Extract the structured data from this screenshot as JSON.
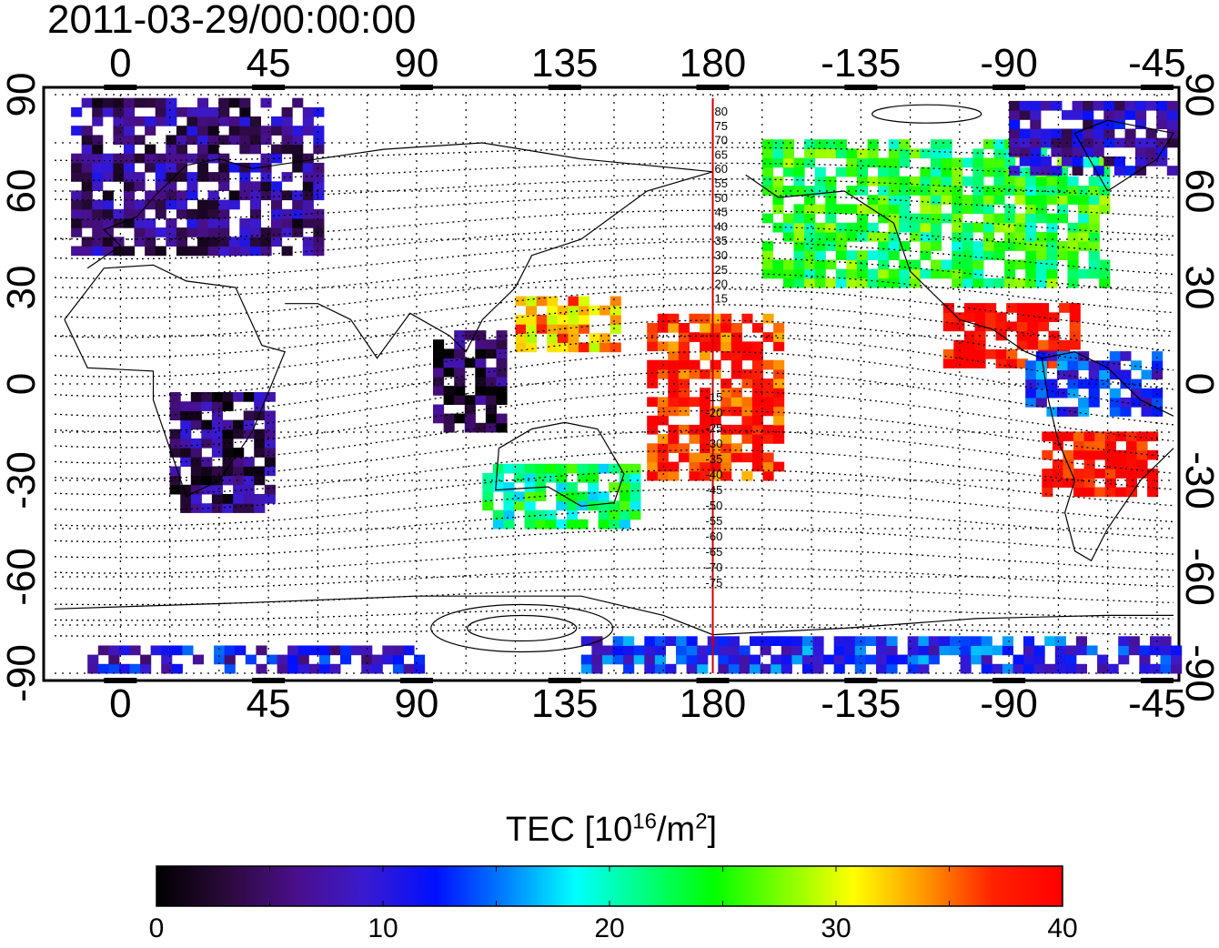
{
  "title": "2011-03-29/00:00:00",
  "map": {
    "x_ticks_top": [
      "0",
      "45",
      "90",
      "135",
      "180",
      "-135",
      "-90",
      "-45"
    ],
    "x_ticks_bottom": [
      "0",
      "45",
      "90",
      "135",
      "180",
      "-135",
      "-90",
      "-45"
    ],
    "y_ticks_left": [
      "90",
      "60",
      "30",
      "0",
      "-30",
      "-60",
      "-90"
    ],
    "y_ticks_right": [
      "90",
      "60",
      "30",
      "0",
      "-30",
      "-60",
      "-90"
    ],
    "contour_labels_north": [
      "80",
      "75",
      "70",
      "65",
      "60",
      "55",
      "50",
      "45",
      "40",
      "35",
      "30",
      "25",
      "20",
      "15"
    ],
    "contour_labels_south": [
      "-15",
      "-20",
      "-25",
      "-30",
      "-35",
      "-40",
      "-45",
      "-50",
      "-55",
      "-60",
      "-65",
      "-70",
      "-75"
    ],
    "meridian_line_color": "#cc0000"
  },
  "colorbar": {
    "title_main": "TEC  [10",
    "title_exp": "16",
    "title_unit": "/m",
    "title_exp2": "2",
    "title_end": "]",
    "tick_labels": [
      "0",
      "10",
      "20",
      "30",
      "40"
    ],
    "min": 0,
    "max": 40,
    "colors": [
      "#000000",
      "#2a0a3a",
      "#4a0f8a",
      "#3a1ad0",
      "#0010ff",
      "#0080ff",
      "#00ffff",
      "#00ff80",
      "#00ff00",
      "#80ff00",
      "#ffff00",
      "#ff9900",
      "#ff2200",
      "#ff0000"
    ]
  },
  "chart_data": {
    "type": "heatmap",
    "title": "2011-03-29/00:00:00",
    "xlabel": "",
    "ylabel": "",
    "xlim": [
      -20,
      320
    ],
    "ylim": [
      -90,
      90
    ],
    "colorbar_range": [
      0,
      40
    ],
    "colorbar_label": "TEC [10^16/m^2]",
    "regions": [
      {
        "lon": [
          -15,
          60
        ],
        "lat": [
          40,
          88
        ],
        "tec": 6
      },
      {
        "lon": [
          15,
          45
        ],
        "lat": [
          -40,
          -5
        ],
        "tec": 5
      },
      {
        "lon": [
          95,
          115
        ],
        "lat": [
          -15,
          15
        ],
        "tec": 3
      },
      {
        "lon": [
          -10,
          90
        ],
        "lat": [
          -90,
          -84
        ],
        "tec": 10
      },
      {
        "lon": [
          120,
          150
        ],
        "lat": [
          10,
          25
        ],
        "tec": 33
      },
      {
        "lon": [
          110,
          155
        ],
        "lat": [
          -45,
          -25
        ],
        "tec": 22
      },
      {
        "lon": [
          160,
          200
        ],
        "lat": [
          -30,
          20
        ],
        "tec": 38
      },
      {
        "lon": [
          195,
          300
        ],
        "lat": [
          30,
          75
        ],
        "tec": 24
      },
      {
        "lon": [
          250,
          290
        ],
        "lat": [
          5,
          25
        ],
        "tec": 40
      },
      {
        "lon": [
          280,
          315
        ],
        "lat": [
          -35,
          -15
        ],
        "tec": 40
      },
      {
        "lon": [
          275,
          315
        ],
        "lat": [
          -10,
          10
        ],
        "tec": 12
      },
      {
        "lon": [
          140,
          320
        ],
        "lat": [
          -90,
          -80
        ],
        "tec": 12
      },
      {
        "lon": [
          270,
          320
        ],
        "lat": [
          65,
          88
        ],
        "tec": 8
      }
    ]
  }
}
